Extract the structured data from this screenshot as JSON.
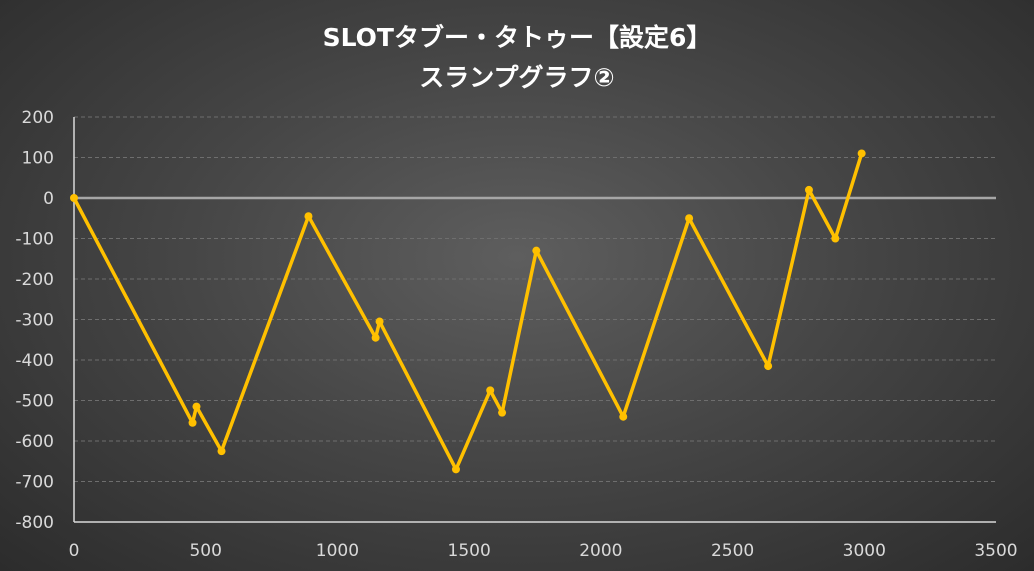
{
  "chart_data": {
    "type": "scatter",
    "title_lines": [
      "SLOTタブー・タトゥー【設定6】",
      "スランプグラフ②"
    ],
    "xlabel": "",
    "ylabel": "",
    "xlim": [
      0,
      3500
    ],
    "ylim": [
      -800,
      200
    ],
    "xticks": [
      0,
      500,
      1000,
      1500,
      2000,
      2500,
      3000,
      3500
    ],
    "yticks": [
      200,
      100,
      0,
      -100,
      -200,
      -300,
      -400,
      -500,
      -600,
      -700,
      -800
    ],
    "grid": true,
    "legend": "none",
    "series": [
      {
        "color": "#ffc000",
        "x": [
          0,
          450,
          465,
          560,
          890,
          1145,
          1160,
          1450,
          1580,
          1625,
          1755,
          2085,
          2335,
          2635,
          2790,
          2890,
          2990
        ],
        "y": [
          0,
          -555,
          -515,
          -625,
          -45,
          -345,
          -305,
          -670,
          -475,
          -530,
          -130,
          -540,
          -50,
          -415,
          20,
          -100,
          110
        ]
      }
    ]
  },
  "colors": {
    "line": "#ffc000",
    "grid": "#6e6e6e",
    "zero_line": "#a6a6a6",
    "axis": "#d9d9d9",
    "text": "#d9d9d9"
  }
}
